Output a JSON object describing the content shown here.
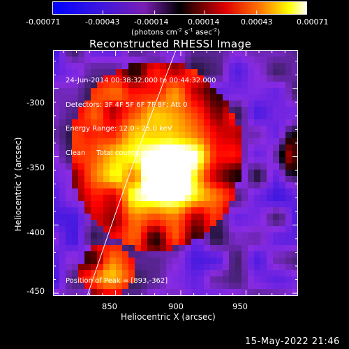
{
  "colorbar": {
    "tick_labels": [
      "-0.00071",
      "-0.00043",
      "-0.00014",
      "0.00014",
      "0.00043",
      "0.00071"
    ],
    "unit_label": "(photons cm",
    "unit_exp1": "-2",
    "unit_mid": " s",
    "unit_exp2": "-1",
    "unit_end": " asec",
    "unit_exp3": "-2",
    "unit_close": ")"
  },
  "image": {
    "title": "Reconstructed RHESSI Image",
    "info_lines": [
      "24-Jun-2014 00:38:32.000 to 00:44:32.000",
      "Detectors: 3F 4F 5F 6F 7F 8F; Att 0",
      "Energy Range: 12.0 - 25.0 keV",
      "Clean     Total counts: 1.38E+04"
    ],
    "peak_label": "Position of Peak = [893,-362]",
    "x_axis_label": "Heliocentric X (arcsec)",
    "y_axis_label": "Heliocentric Y (arcsec)",
    "x_ticks": [
      "850",
      "900",
      "950"
    ],
    "y_ticks": [
      "-300",
      "-350",
      "-400",
      "-450"
    ],
    "footer_date": "15-May-2022 21:46"
  },
  "chart_data": {
    "type": "heatmap",
    "title": "Reconstructed RHESSI Image",
    "xlabel": "Heliocentric X (arcsec)",
    "ylabel": "Heliocentric Y (arcsec)",
    "xlim": [
      802,
      990
    ],
    "ylim": [
      -452,
      -272
    ],
    "x_ticks": [
      850,
      900,
      950
    ],
    "y_ticks": [
      -300,
      -350,
      -400,
      -450
    ],
    "colorbar_range": [
      -0.00071,
      0.00071
    ],
    "colorbar_ticks": [
      -0.00071,
      -0.00043,
      -0.00014,
      0.00014,
      0.00043,
      0.00071
    ],
    "peak": [
      893,
      -362
    ],
    "colors": {
      "negative_low": "#0000ff",
      "negative_mid": "#8a2be2",
      "zero": "#000000",
      "positive_mid": "#ff0000",
      "positive_high": "#ffff00",
      "max": "#ffffff"
    }
  }
}
